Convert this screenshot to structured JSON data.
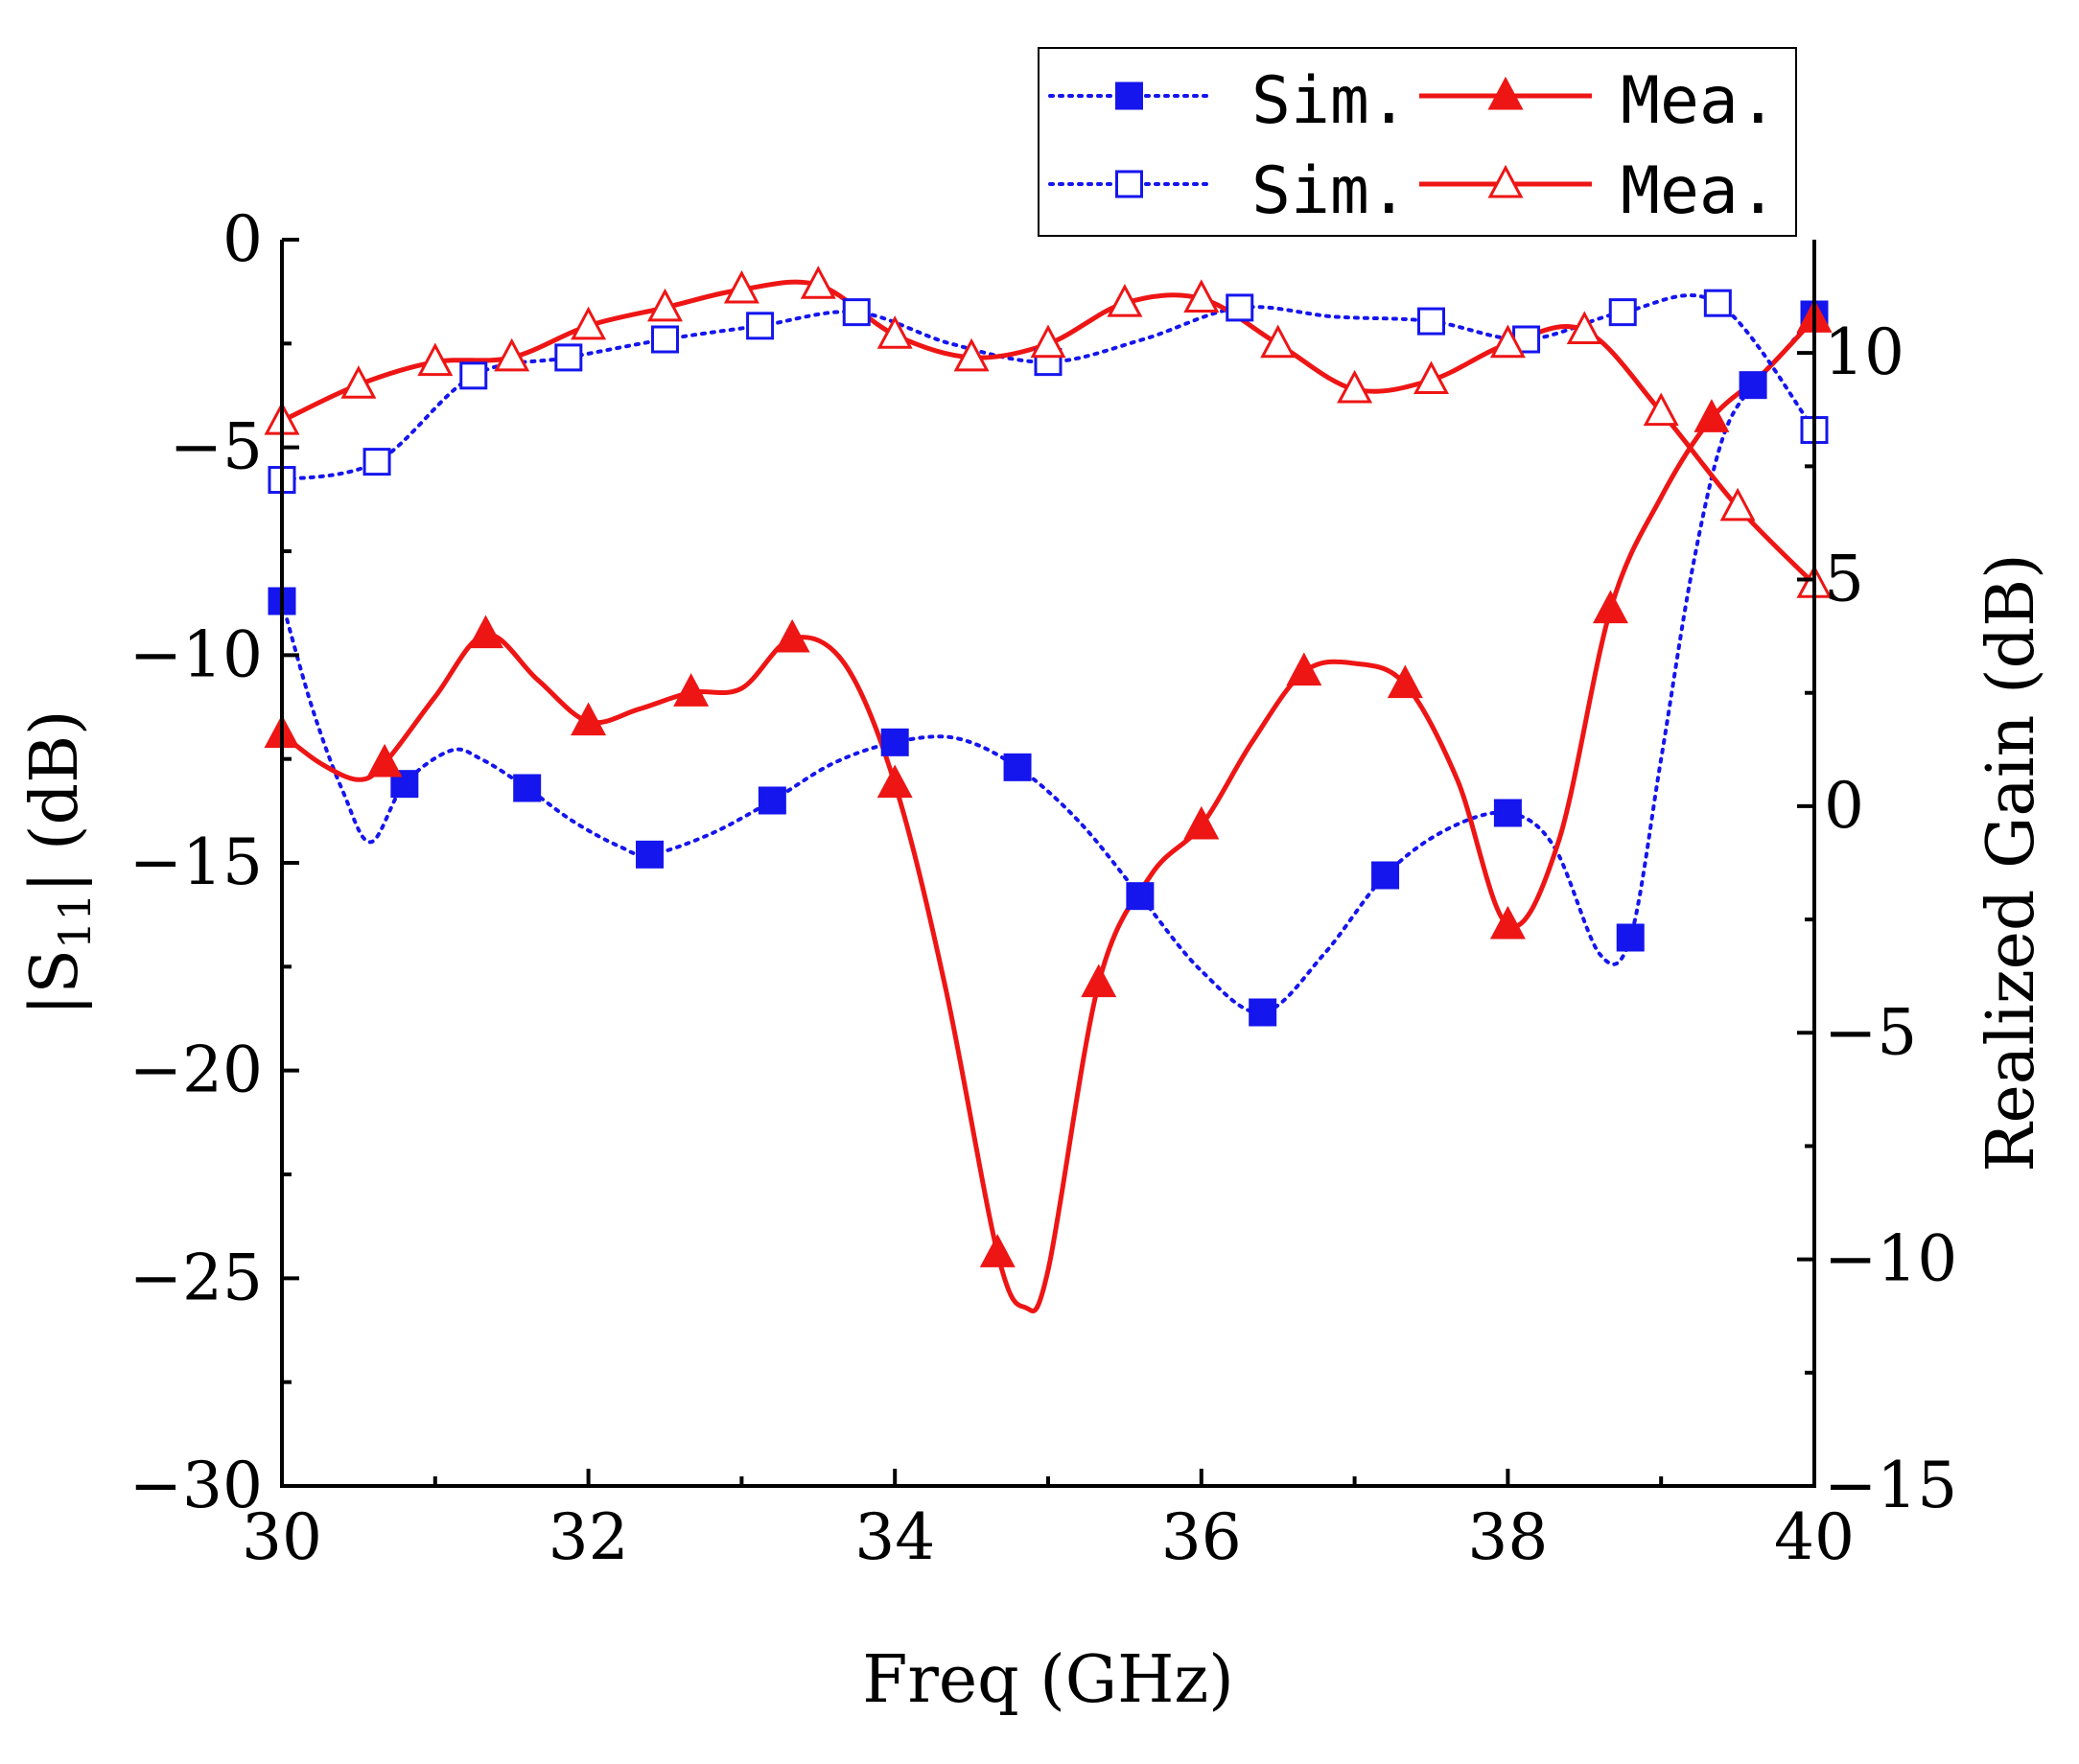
{
  "colors": {
    "sim": "#1515ee",
    "mea": "#ee1515",
    "axis": "#000000"
  },
  "chart_data": {
    "type": "line",
    "xlabel": "Freq (GHz)",
    "ylabel": {
      "prefix": "|S",
      "subscript": "11",
      "suffix": "| (dB)"
    },
    "y2label": "Realized Gain (dB)",
    "xlim": [
      30,
      40
    ],
    "ylim": [
      -30,
      0
    ],
    "y2lim": [
      -15,
      12.5
    ],
    "xticks": [
      "30",
      "32",
      "34",
      "36",
      "38",
      "40"
    ],
    "yticks": [
      "0",
      "-5",
      "-10",
      "-15",
      "-20",
      "-25",
      "-30"
    ],
    "y2ticks": [
      "10",
      "5",
      "0",
      "-5",
      "-10",
      "-15"
    ],
    "legend": [
      {
        "label": "Sim.",
        "series": "s11_sim"
      },
      {
        "label": "Mea.",
        "series": "s11_mea"
      },
      {
        "label": "Sim.",
        "series": "gain_sim"
      },
      {
        "label": "Mea.",
        "series": "gain_mea"
      }
    ],
    "series": [
      {
        "id": "s11_sim",
        "name": "Sim.",
        "axis": "left",
        "style": "dotted",
        "color": "sim",
        "marker": "square-filled",
        "x": [
          30.0,
          30.2,
          30.4,
          30.58,
          30.8,
          31.1,
          31.3,
          31.6,
          31.9,
          32.2,
          32.4,
          32.8,
          33.2,
          33.6,
          34.0,
          34.4,
          34.8,
          35.2,
          35.6,
          36.0,
          36.4,
          36.8,
          37.2,
          37.6,
          38.0,
          38.3,
          38.6,
          38.8,
          39.0,
          39.2,
          39.4,
          39.6,
          39.8,
          40.0
        ],
        "y": [
          -8.7,
          -11.3,
          -13.3,
          -14.5,
          -13.1,
          -12.3,
          -12.5,
          -13.2,
          -14.0,
          -14.6,
          -14.8,
          -14.3,
          -13.5,
          -12.6,
          -12.1,
          -12.0,
          -12.7,
          -14.0,
          -15.8,
          -17.6,
          -18.6,
          -17.2,
          -15.3,
          -14.2,
          -13.8,
          -14.6,
          -17.2,
          -16.8,
          -12.5,
          -8.0,
          -4.8,
          -3.5,
          -2.7,
          -1.8
        ],
        "markers_x": [
          30.0,
          30.8,
          31.6,
          32.4,
          33.2,
          34.0,
          34.8,
          35.6,
          36.4,
          37.2,
          38.0,
          38.8,
          39.6,
          40.0
        ]
      },
      {
        "id": "s11_mea",
        "name": "Mea.",
        "axis": "left",
        "style": "solid",
        "color": "mea",
        "marker": "triangle-filled",
        "x": [
          30.0,
          30.25,
          30.5,
          30.67,
          31.0,
          31.33,
          31.67,
          32.0,
          32.33,
          32.67,
          33.0,
          33.33,
          33.67,
          34.0,
          34.33,
          34.67,
          34.85,
          35.0,
          35.33,
          35.67,
          36.0,
          36.33,
          36.67,
          37.0,
          37.33,
          37.67,
          38.0,
          38.33,
          38.67,
          39.0,
          39.33,
          39.67,
          40.0
        ],
        "y": [
          -11.9,
          -12.6,
          -13.0,
          -12.6,
          -11.0,
          -9.5,
          -10.6,
          -11.6,
          -11.3,
          -10.9,
          -10.8,
          -9.6,
          -10.2,
          -13.1,
          -18.0,
          -24.4,
          -25.7,
          -24.8,
          -17.9,
          -15.3,
          -14.1,
          -12.1,
          -10.4,
          -10.2,
          -10.7,
          -13.0,
          -16.5,
          -14.5,
          -8.9,
          -6.2,
          -4.3,
          -3.2,
          -1.9
        ],
        "markers_x": [
          30.0,
          30.67,
          31.33,
          32.0,
          32.67,
          33.33,
          34.0,
          34.67,
          35.33,
          36.0,
          36.67,
          37.33,
          38.0,
          38.67,
          39.33,
          40.0
        ]
      },
      {
        "id": "gain_sim",
        "name": "Sim.",
        "axis": "right",
        "style": "dotted",
        "color": "sim",
        "marker": "square-open",
        "x": [
          30.0,
          30.62,
          31.25,
          31.87,
          32.5,
          33.12,
          33.75,
          34.37,
          35.0,
          35.62,
          36.25,
          36.87,
          37.5,
          38.12,
          38.75,
          39.37,
          40.0
        ],
        "y": [
          7.2,
          7.6,
          9.5,
          9.9,
          10.3,
          10.6,
          10.9,
          10.2,
          9.8,
          10.3,
          11.0,
          10.8,
          10.7,
          10.3,
          10.9,
          11.1,
          8.3
        ],
        "markers_x": [
          30.0,
          30.62,
          31.25,
          31.87,
          32.5,
          33.12,
          33.75,
          35.0,
          36.25,
          37.5,
          38.12,
          38.75,
          39.37,
          40.0
        ]
      },
      {
        "id": "gain_mea",
        "name": "Mea.",
        "axis": "right",
        "style": "solid",
        "color": "mea",
        "marker": "triangle-open",
        "x": [
          30.0,
          30.5,
          31.0,
          31.5,
          32.0,
          32.5,
          33.0,
          33.5,
          34.0,
          34.5,
          35.0,
          35.5,
          36.0,
          36.5,
          37.0,
          37.5,
          38.0,
          38.5,
          39.0,
          39.5,
          40.0
        ],
        "y": [
          8.5,
          9.3,
          9.8,
          9.9,
          10.6,
          11.0,
          11.4,
          11.5,
          10.4,
          9.9,
          10.2,
          11.1,
          11.2,
          10.2,
          9.2,
          9.4,
          10.2,
          10.5,
          8.7,
          6.6,
          4.9
        ]
      }
    ]
  }
}
